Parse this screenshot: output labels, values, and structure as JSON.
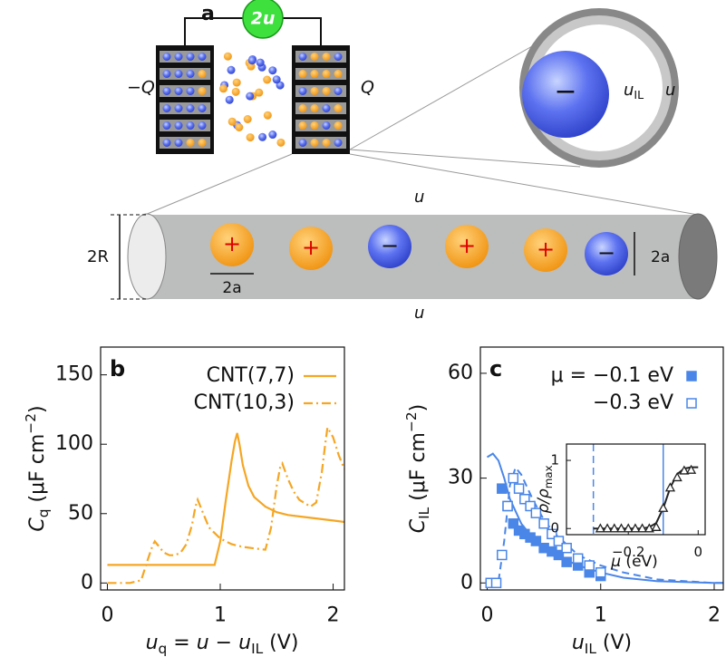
{
  "diagram": {
    "panel_label": "a",
    "source_label": "2u",
    "left_charge": "−Q",
    "right_charge": "Q",
    "ion_potential": [
      "u",
      "IL"
    ],
    "electrode_potential": "u",
    "zoom_ion_sign": "−",
    "tube_top_label": "u",
    "tube_bottom_label": "u",
    "tube_diameter": "2R",
    "ion_diameter_bottom": "2a",
    "ion_diameter_right": "2a",
    "ions": [
      {
        "sign": "+"
      },
      {
        "sign": "+"
      },
      {
        "sign": "−"
      },
      {
        "sign": "+"
      },
      {
        "sign": "+"
      },
      {
        "sign": "−"
      }
    ]
  },
  "chart_data": [
    {
      "type": "line",
      "label": "b",
      "xlabel": [
        "u",
        "q",
        " = ",
        "u",
        " − ",
        "u",
        "IL",
        " (V)"
      ],
      "ylabel": [
        "C",
        "q",
        " (μF cm",
        "−2",
        ")"
      ],
      "xlim": [
        -0.06,
        2.1
      ],
      "ylim": [
        -5,
        170
      ],
      "xticks": [
        0,
        1,
        2
      ],
      "yticks": [
        0,
        50,
        100,
        150
      ],
      "legend": "upper right",
      "series": [
        {
          "name": "CNT(7,7)",
          "color": "#f5a623",
          "style": "solid",
          "x": [
            0,
            0.2,
            0.4,
            0.6,
            0.8,
            0.95,
            1.0,
            1.05,
            1.1,
            1.13,
            1.15,
            1.17,
            1.2,
            1.25,
            1.3,
            1.4,
            1.5,
            1.6,
            1.8,
            2.0,
            2.1
          ],
          "values": [
            13,
            13,
            13,
            13,
            13,
            13,
            30,
            60,
            88,
            102,
            108,
            100,
            85,
            70,
            62,
            55,
            51,
            49,
            47,
            45,
            44
          ]
        },
        {
          "name": "CNT(10,3)",
          "color": "#f5a623",
          "style": "dashdot",
          "x": [
            0,
            0.2,
            0.3,
            0.35,
            0.4,
            0.42,
            0.45,
            0.5,
            0.55,
            0.6,
            0.65,
            0.7,
            0.75,
            0.78,
            0.8,
            0.85,
            0.9,
            1.0,
            1.1,
            1.2,
            1.3,
            1.4,
            1.45,
            1.5,
            1.53,
            1.55,
            1.6,
            1.65,
            1.7,
            1.8,
            1.85,
            1.9,
            1.93,
            1.95,
            2.0,
            2.05,
            2.1
          ],
          "values": [
            0,
            0,
            2,
            15,
            27,
            30,
            27,
            22,
            20,
            20,
            22,
            28,
            42,
            55,
            60,
            50,
            40,
            32,
            28,
            26,
            25,
            24,
            40,
            70,
            83,
            86,
            75,
            66,
            60,
            55,
            58,
            80,
            100,
            112,
            105,
            92,
            82
          ]
        }
      ]
    },
    {
      "type": "scatter",
      "label": "c",
      "xlabel": [
        "u",
        "IL",
        " (V)"
      ],
      "ylabel": [
        "C",
        "IL",
        " (μF cm",
        "−2",
        ")"
      ],
      "xlim": [
        -0.06,
        2.08
      ],
      "ylim": [
        -2,
        67.5
      ],
      "xticks": [
        0,
        1,
        2
      ],
      "yticks": [
        0,
        30,
        60
      ],
      "legend": "upper right",
      "series": [
        {
          "name": "μ = −0.1 eV",
          "color": "#4a86e8",
          "marker": "square-filled",
          "x": [
            0.13,
            0.18,
            0.23,
            0.28,
            0.33,
            0.38,
            0.43,
            0.5,
            0.57,
            0.63,
            0.7,
            0.8,
            0.9,
            1.0
          ],
          "values": [
            27,
            22,
            17,
            15,
            14,
            13,
            12,
            10,
            9,
            8,
            6,
            5,
            3,
            2
          ],
          "fit_style": "solid",
          "fit_x": [
            0,
            0.05,
            0.1,
            0.15,
            0.2,
            0.3,
            0.4,
            0.5,
            0.6,
            0.8,
            1.0,
            1.2,
            1.5,
            2.0,
            2.08
          ],
          "fit_values": [
            36,
            37,
            35,
            30,
            24,
            17,
            13,
            10,
            8,
            5,
            3,
            1.5,
            0.5,
            0,
            0
          ]
        },
        {
          "name": "−0.3 eV",
          "color": "#4a86e8",
          "marker": "square-open",
          "x": [
            0.03,
            0.08,
            0.13,
            0.18,
            0.23,
            0.28,
            0.33,
            0.38,
            0.43,
            0.5,
            0.57,
            0.63,
            0.7,
            0.8,
            0.9,
            1.0
          ],
          "values": [
            0,
            0,
            8,
            22,
            30,
            27,
            24,
            22,
            20,
            17,
            14,
            12,
            10,
            7,
            5,
            3
          ],
          "fit_style": "dashed",
          "fit_x": [
            0,
            0.1,
            0.15,
            0.2,
            0.25,
            0.3,
            0.4,
            0.5,
            0.6,
            0.8,
            1.0,
            1.2,
            1.5,
            2.0,
            2.08
          ],
          "fit_values": [
            0,
            0.5,
            12,
            28,
            33,
            31,
            24,
            18,
            14,
            8,
            5,
            3,
            1,
            0,
            0
          ]
        }
      ]
    },
    {
      "type": "scatter",
      "xlabel": [
        "μ",
        " (eV)"
      ],
      "ylabel": [
        "ρ/ρ",
        "max"
      ],
      "xlim": [
        -0.377,
        0.02
      ],
      "ylim": [
        -0.09,
        1.24
      ],
      "xticks": [
        {
          "value": -0.2,
          "label": "−0.2"
        },
        0
      ],
      "yticks": [
        0,
        1
      ],
      "vlines": [
        {
          "x": -0.3,
          "style": "dashed",
          "color": "#4a86e8"
        },
        {
          "x": -0.1,
          "style": "solid",
          "color": "#4a86e8"
        }
      ],
      "series": [
        {
          "color": "#222222",
          "marker": "triangle-open",
          "x": [
            -0.28,
            -0.26,
            -0.24,
            -0.22,
            -0.2,
            -0.18,
            -0.16,
            -0.14,
            -0.12,
            -0.1,
            -0.08,
            -0.06,
            -0.04,
            -0.02
          ],
          "values": [
            0,
            0,
            0,
            0,
            0,
            0,
            0,
            0,
            0.02,
            0.3,
            0.6,
            0.75,
            0.85,
            0.86
          ],
          "fit_style": "solid",
          "fit_x": [
            -0.3,
            -0.16,
            -0.14,
            -0.12,
            -0.1,
            -0.08,
            -0.06,
            -0.04,
            -0.02,
            0
          ],
          "fit_values": [
            0,
            0,
            0.02,
            0.08,
            0.3,
            0.6,
            0.8,
            0.88,
            0.9,
            0.9
          ]
        }
      ]
    }
  ]
}
